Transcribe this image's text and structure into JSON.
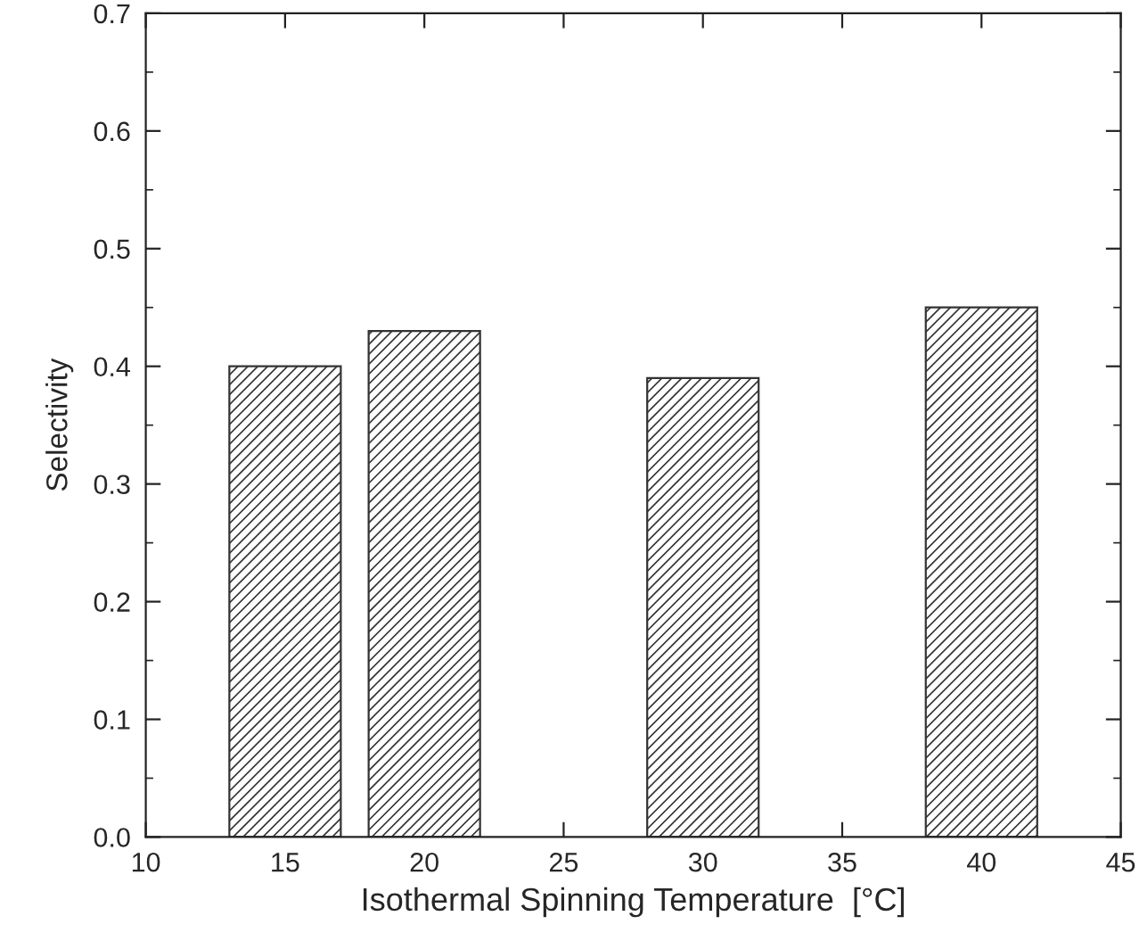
{
  "chart_data": {
    "type": "bar",
    "xlabel": "Isothermal Spinning Temperature  [°C]",
    "ylabel": "Selectivity",
    "x": [
      15,
      20,
      30,
      40
    ],
    "series": [
      {
        "color": "#333333",
        "values": [
          0.4,
          0.43,
          0.39,
          0.45
        ]
      }
    ],
    "xlim": [
      10,
      45
    ],
    "xticks": [
      10,
      15,
      20,
      25,
      30,
      35,
      40,
      45
    ],
    "ylim": [
      0,
      0.7
    ],
    "yticks": [
      {
        "value": 0,
        "label": "0.0"
      },
      0.1,
      0.2,
      0.3,
      0.4,
      0.5,
      0.6,
      0.7
    ],
    "grid": false
  }
}
